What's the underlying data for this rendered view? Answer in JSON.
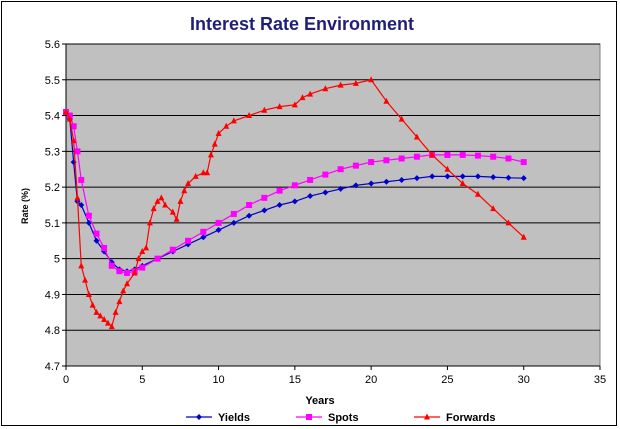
{
  "chart_data": {
    "type": "line",
    "title": "Interest Rate Environment",
    "xlabel": "Years",
    "ylabel": "Rate (%)",
    "xlim": [
      0,
      35
    ],
    "ylim": [
      4.7,
      5.6
    ],
    "x_ticks": [
      0,
      5,
      10,
      15,
      20,
      25,
      30,
      35
    ],
    "y_ticks": [
      4.7,
      4.8,
      4.9,
      5,
      5.1,
      5.2,
      5.3,
      5.4,
      5.5,
      5.6
    ],
    "grid": "horizontal",
    "legend_position": "bottom",
    "plot_background": "#c0c0c0",
    "series": [
      {
        "name": "Yields",
        "color": "#0000cc",
        "marker": "diamond",
        "points": [
          [
            0,
            5.41
          ],
          [
            0.25,
            5.39
          ],
          [
            0.5,
            5.27
          ],
          [
            0.75,
            5.16
          ],
          [
            1,
            5.15
          ],
          [
            1.5,
            5.1
          ],
          [
            2,
            5.05
          ],
          [
            2.5,
            5.02
          ],
          [
            3,
            4.99
          ],
          [
            3.5,
            4.97
          ],
          [
            4,
            4.965
          ],
          [
            4.5,
            4.97
          ],
          [
            5,
            4.98
          ],
          [
            6,
            5.0
          ],
          [
            7,
            5.02
          ],
          [
            8,
            5.04
          ],
          [
            9,
            5.06
          ],
          [
            10,
            5.08
          ],
          [
            11,
            5.1
          ],
          [
            12,
            5.12
          ],
          [
            13,
            5.135
          ],
          [
            14,
            5.15
          ],
          [
            15,
            5.16
          ],
          [
            16,
            5.175
          ],
          [
            17,
            5.185
          ],
          [
            18,
            5.195
          ],
          [
            19,
            5.205
          ],
          [
            20,
            5.21
          ],
          [
            21,
            5.215
          ],
          [
            22,
            5.22
          ],
          [
            23,
            5.225
          ],
          [
            24,
            5.23
          ],
          [
            25,
            5.23
          ],
          [
            26,
            5.23
          ],
          [
            27,
            5.23
          ],
          [
            28,
            5.228
          ],
          [
            29,
            5.226
          ],
          [
            30,
            5.225
          ]
        ]
      },
      {
        "name": "Spots",
        "color": "#ff00ff",
        "marker": "square",
        "points": [
          [
            0,
            5.41
          ],
          [
            0.25,
            5.4
          ],
          [
            0.5,
            5.37
          ],
          [
            0.75,
            5.3
          ],
          [
            1,
            5.22
          ],
          [
            1.5,
            5.12
          ],
          [
            2,
            5.07
          ],
          [
            2.5,
            5.03
          ],
          [
            3,
            4.98
          ],
          [
            3.5,
            4.965
          ],
          [
            4,
            4.96
          ],
          [
            4.5,
            4.965
          ],
          [
            5,
            4.975
          ],
          [
            6,
            5.0
          ],
          [
            7,
            5.025
          ],
          [
            8,
            5.05
          ],
          [
            9,
            5.075
          ],
          [
            10,
            5.1
          ],
          [
            11,
            5.125
          ],
          [
            12,
            5.15
          ],
          [
            13,
            5.17
          ],
          [
            14,
            5.19
          ],
          [
            15,
            5.205
          ],
          [
            16,
            5.22
          ],
          [
            17,
            5.235
          ],
          [
            18,
            5.25
          ],
          [
            19,
            5.26
          ],
          [
            20,
            5.27
          ],
          [
            21,
            5.275
          ],
          [
            22,
            5.28
          ],
          [
            23,
            5.285
          ],
          [
            24,
            5.29
          ],
          [
            25,
            5.29
          ],
          [
            26,
            5.29
          ],
          [
            27,
            5.288
          ],
          [
            28,
            5.285
          ],
          [
            29,
            5.28
          ],
          [
            30,
            5.27
          ]
        ]
      },
      {
        "name": "Forwards",
        "color": "#ff0000",
        "marker": "triangle",
        "points": [
          [
            0,
            5.41
          ],
          [
            0.25,
            5.39
          ],
          [
            0.5,
            5.33
          ],
          [
            0.75,
            5.17
          ],
          [
            1,
            4.98
          ],
          [
            1.25,
            4.94
          ],
          [
            1.5,
            4.9
          ],
          [
            1.75,
            4.87
          ],
          [
            2,
            4.85
          ],
          [
            2.25,
            4.84
          ],
          [
            2.5,
            4.83
          ],
          [
            2.75,
            4.82
          ],
          [
            3,
            4.81
          ],
          [
            3.25,
            4.85
          ],
          [
            3.5,
            4.88
          ],
          [
            3.75,
            4.91
          ],
          [
            4,
            4.93
          ],
          [
            4.5,
            4.96
          ],
          [
            4.75,
            5.0
          ],
          [
            5,
            5.02
          ],
          [
            5.25,
            5.03
          ],
          [
            5.5,
            5.1
          ],
          [
            5.75,
            5.14
          ],
          [
            6,
            5.16
          ],
          [
            6.25,
            5.17
          ],
          [
            6.5,
            5.15
          ],
          [
            7,
            5.13
          ],
          [
            7.25,
            5.11
          ],
          [
            7.5,
            5.16
          ],
          [
            7.75,
            5.19
          ],
          [
            8,
            5.21
          ],
          [
            8.5,
            5.23
          ],
          [
            9,
            5.24
          ],
          [
            9.25,
            5.24
          ],
          [
            9.5,
            5.29
          ],
          [
            9.75,
            5.32
          ],
          [
            10,
            5.35
          ],
          [
            10.5,
            5.37
          ],
          [
            11,
            5.385
          ],
          [
            12,
            5.4
          ],
          [
            13,
            5.415
          ],
          [
            14,
            5.425
          ],
          [
            15,
            5.43
          ],
          [
            15.5,
            5.45
          ],
          [
            16,
            5.46
          ],
          [
            17,
            5.475
          ],
          [
            18,
            5.485
          ],
          [
            19,
            5.49
          ],
          [
            20,
            5.5
          ],
          [
            21,
            5.44
          ],
          [
            22,
            5.39
          ],
          [
            23,
            5.34
          ],
          [
            24,
            5.29
          ],
          [
            25,
            5.25
          ],
          [
            26,
            5.21
          ],
          [
            27,
            5.18
          ],
          [
            28,
            5.14
          ],
          [
            29,
            5.1
          ],
          [
            30,
            5.06
          ]
        ]
      }
    ]
  }
}
